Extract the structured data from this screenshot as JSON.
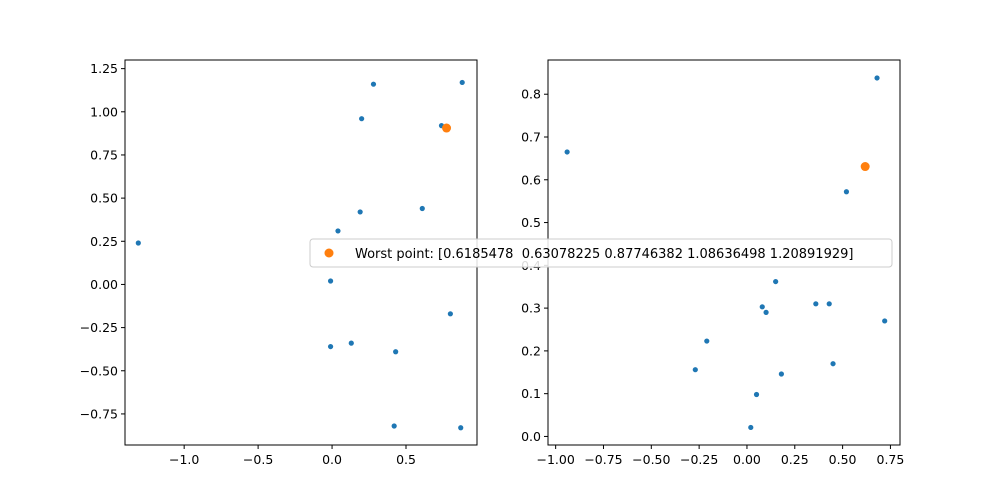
{
  "colors": {
    "series": "#1f77b4",
    "highlight": "#ff7f0e",
    "axes": "#000000"
  },
  "legend": {
    "placement": "center",
    "marker_color": "#ff7f0e"
  },
  "chart_data": [
    {
      "type": "scatter",
      "title": "",
      "xlabel": "",
      "ylabel": "",
      "xlim": [
        -1.4,
        0.98
      ],
      "ylim": [
        -0.93,
        1.3
      ],
      "xticks": [
        -1.0,
        -0.5,
        0.0,
        0.5
      ],
      "xtick_labels": [
        "−1.0",
        "−0.5",
        "0.0",
        "0.5"
      ],
      "yticks": [
        -0.75,
        -0.5,
        -0.25,
        0.0,
        0.25,
        0.5,
        0.75,
        1.0,
        1.25
      ],
      "ytick_labels": [
        "−0.75",
        "−0.50",
        "−0.25",
        "0.00",
        "0.25",
        "0.50",
        "0.75",
        "1.00",
        "1.25"
      ],
      "grid": false,
      "series": [
        {
          "color": "#1f77b4",
          "marker_size": "small",
          "points": [
            {
              "x": -1.31,
              "y": 0.24
            },
            {
              "x": 0.28,
              "y": 1.16
            },
            {
              "x": 0.88,
              "y": 1.17
            },
            {
              "x": 0.2,
              "y": 0.96
            },
            {
              "x": 0.74,
              "y": 0.92
            },
            {
              "x": 0.19,
              "y": 0.42
            },
            {
              "x": 0.61,
              "y": 0.44
            },
            {
              "x": 0.04,
              "y": 0.31
            },
            {
              "x": -0.01,
              "y": 0.02
            },
            {
              "x": 0.8,
              "y": -0.17
            },
            {
              "x": 0.13,
              "y": -0.34
            },
            {
              "x": -0.01,
              "y": -0.36
            },
            {
              "x": 0.43,
              "y": -0.39
            },
            {
              "x": 0.42,
              "y": -0.82
            },
            {
              "x": 0.87,
              "y": -0.83
            }
          ]
        },
        {
          "color": "#ff7f0e",
          "marker_size": "large",
          "points": [
            {
              "x": 0.774,
              "y": 0.906
            }
          ]
        }
      ]
    },
    {
      "type": "scatter",
      "title": "",
      "xlabel": "",
      "ylabel": "",
      "xlim": [
        -1.04,
        0.8
      ],
      "ylim": [
        -0.02,
        0.88
      ],
      "xticks": [
        -1.0,
        -0.75,
        -0.5,
        -0.25,
        0.0,
        0.25,
        0.5,
        0.75
      ],
      "xtick_labels": [
        "−1.00",
        "−0.75",
        "−0.50",
        "−0.25",
        "0.00",
        "0.25",
        "0.50",
        "0.75"
      ],
      "yticks": [
        0.0,
        0.1,
        0.2,
        0.3,
        0.4,
        0.5,
        0.6,
        0.7,
        0.8
      ],
      "ytick_labels": [
        "0.0",
        "0.1",
        "0.2",
        "0.3",
        "0.4",
        "0.5",
        "0.6",
        "0.7",
        "0.8"
      ],
      "grid": false,
      "series": [
        {
          "color": "#1f77b4",
          "marker_size": "small",
          "points": [
            {
              "x": -0.94,
              "y": 0.665
            },
            {
              "x": 0.68,
              "y": 0.838
            },
            {
              "x": 0.52,
              "y": 0.572
            },
            {
              "x": 0.15,
              "y": 0.362
            },
            {
              "x": 0.36,
              "y": 0.31
            },
            {
              "x": 0.43,
              "y": 0.31
            },
            {
              "x": 0.08,
              "y": 0.303
            },
            {
              "x": 0.1,
              "y": 0.29
            },
            {
              "x": 0.72,
              "y": 0.27
            },
            {
              "x": -0.21,
              "y": 0.223
            },
            {
              "x": -0.27,
              "y": 0.156
            },
            {
              "x": 0.45,
              "y": 0.17
            },
            {
              "x": 0.18,
              "y": 0.146
            },
            {
              "x": 0.05,
              "y": 0.098
            },
            {
              "x": 0.02,
              "y": 0.021
            }
          ]
        },
        {
          "color": "#ff7f0e",
          "marker_size": "large",
          "points": [
            {
              "x": 0.618,
              "y": 0.631
            }
          ]
        }
      ]
    }
  ],
  "legend_text": "Worst point: [0.6185478  0.63078225 0.87746382 1.08636498 1.20891929]"
}
